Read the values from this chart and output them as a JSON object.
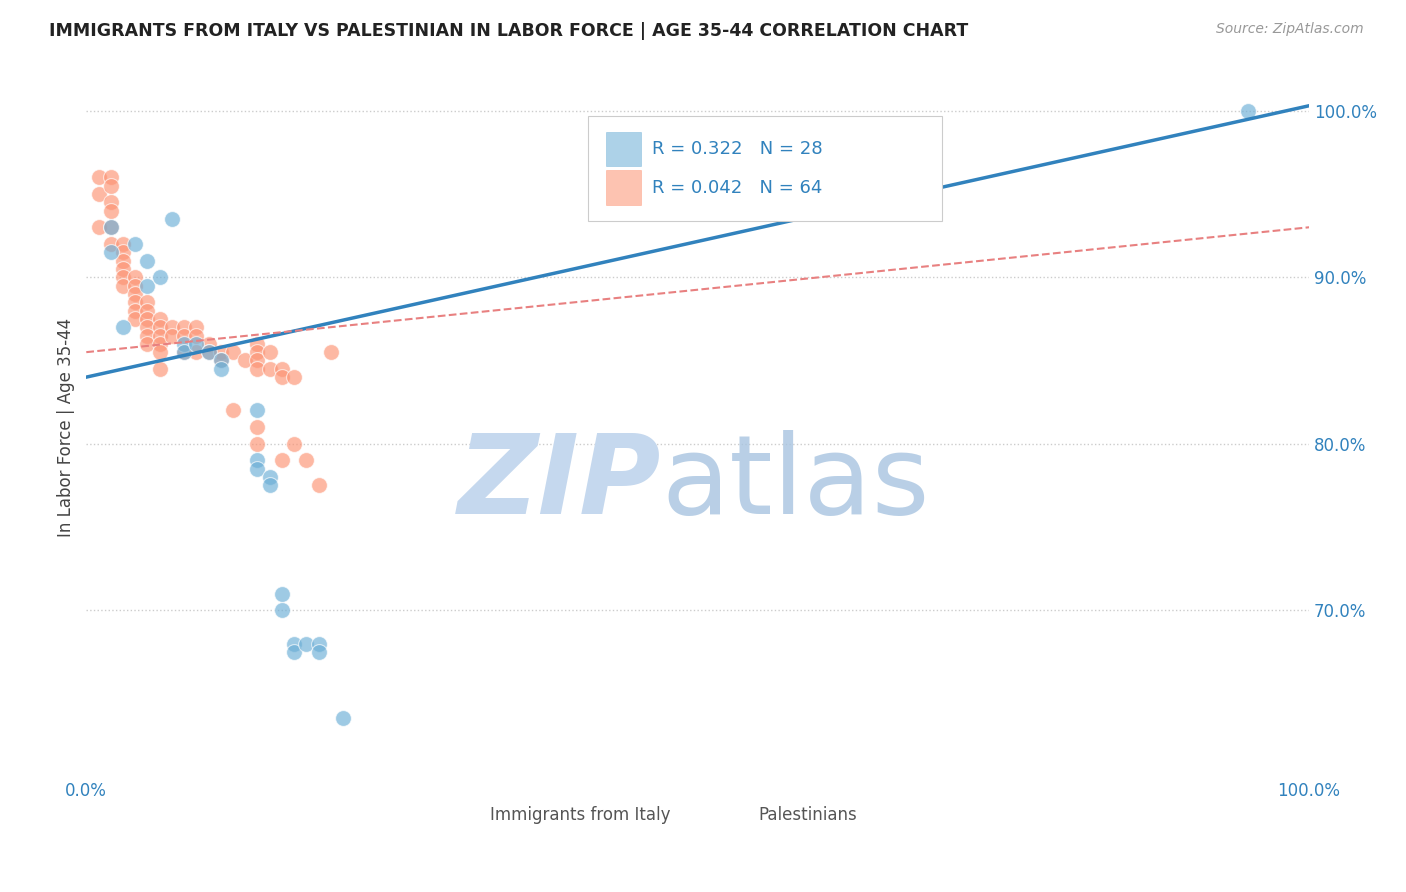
{
  "title": "IMMIGRANTS FROM ITALY VS PALESTINIAN IN LABOR FORCE | AGE 35-44 CORRELATION CHART",
  "source": "Source: ZipAtlas.com",
  "ylabel": "In Labor Force | Age 35-44",
  "xlim": [
    0.0,
    1.0
  ],
  "ylim": [
    0.6,
    1.02
  ],
  "ytick_positions": [
    0.7,
    0.8,
    0.9,
    1.0
  ],
  "ytick_labels": [
    "70.0%",
    "80.0%",
    "90.0%",
    "100.0%"
  ],
  "xtick_labels": [
    "0.0%",
    "100.0%"
  ],
  "background_color": "#ffffff",
  "grid_color": "#cccccc",
  "italy_color": "#6baed6",
  "pal_color": "#fc9272",
  "italy_R": 0.322,
  "italy_N": 28,
  "pal_R": 0.042,
  "pal_N": 64,
  "legend_label_italy": "Immigrants from Italy",
  "legend_label_pal": "Palestinians",
  "italy_scatter_x": [
    0.02,
    0.02,
    0.03,
    0.04,
    0.05,
    0.05,
    0.06,
    0.07,
    0.08,
    0.08,
    0.09,
    0.1,
    0.11,
    0.11,
    0.14,
    0.14,
    0.14,
    0.15,
    0.15,
    0.16,
    0.16,
    0.17,
    0.17,
    0.18,
    0.19,
    0.19,
    0.21,
    0.95
  ],
  "italy_scatter_y": [
    0.93,
    0.915,
    0.87,
    0.92,
    0.91,
    0.895,
    0.9,
    0.935,
    0.86,
    0.855,
    0.86,
    0.855,
    0.85,
    0.845,
    0.79,
    0.785,
    0.82,
    0.78,
    0.775,
    0.71,
    0.7,
    0.68,
    0.675,
    0.68,
    0.68,
    0.675,
    0.635,
    1.0
  ],
  "pal_scatter_x": [
    0.01,
    0.01,
    0.01,
    0.02,
    0.02,
    0.02,
    0.02,
    0.02,
    0.02,
    0.03,
    0.03,
    0.03,
    0.03,
    0.03,
    0.03,
    0.04,
    0.04,
    0.04,
    0.04,
    0.04,
    0.04,
    0.05,
    0.05,
    0.05,
    0.05,
    0.05,
    0.05,
    0.06,
    0.06,
    0.06,
    0.06,
    0.06,
    0.06,
    0.07,
    0.07,
    0.08,
    0.08,
    0.08,
    0.09,
    0.09,
    0.09,
    0.1,
    0.1,
    0.11,
    0.11,
    0.12,
    0.12,
    0.13,
    0.14,
    0.14,
    0.14,
    0.14,
    0.14,
    0.14,
    0.15,
    0.15,
    0.16,
    0.16,
    0.16,
    0.17,
    0.17,
    0.18,
    0.19,
    0.2
  ],
  "pal_scatter_y": [
    0.96,
    0.95,
    0.93,
    0.96,
    0.955,
    0.945,
    0.94,
    0.93,
    0.92,
    0.92,
    0.915,
    0.91,
    0.905,
    0.9,
    0.895,
    0.9,
    0.895,
    0.89,
    0.885,
    0.88,
    0.875,
    0.885,
    0.88,
    0.875,
    0.87,
    0.865,
    0.86,
    0.875,
    0.87,
    0.865,
    0.86,
    0.855,
    0.845,
    0.87,
    0.865,
    0.87,
    0.865,
    0.855,
    0.87,
    0.865,
    0.855,
    0.86,
    0.855,
    0.855,
    0.85,
    0.855,
    0.82,
    0.85,
    0.86,
    0.855,
    0.85,
    0.845,
    0.81,
    0.8,
    0.855,
    0.845,
    0.845,
    0.84,
    0.79,
    0.84,
    0.8,
    0.79,
    0.775,
    0.855
  ],
  "italy_line_y_start": 0.84,
  "italy_line_y_end": 1.003,
  "pal_line_y_start": 0.855,
  "pal_line_y_end": 0.93
}
